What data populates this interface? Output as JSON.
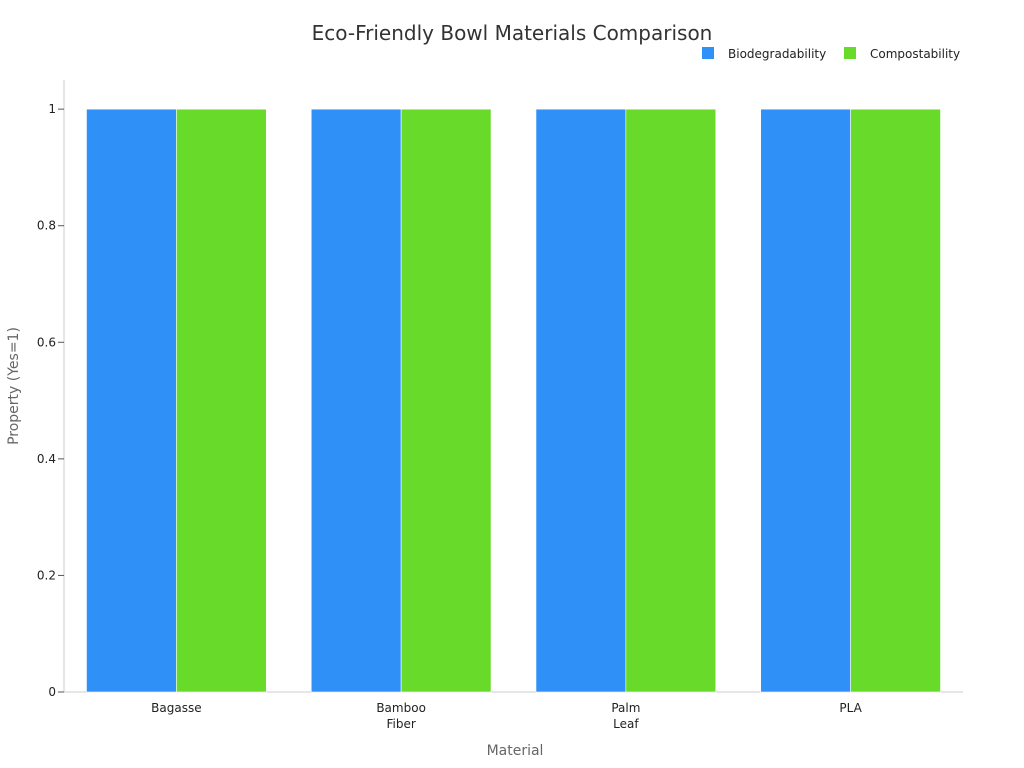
{
  "chart_data": {
    "type": "bar",
    "title": "Eco-Friendly Bowl Materials Comparison",
    "xlabel": "Material",
    "ylabel": "Property (Yes=1)",
    "categories": [
      [
        "Bagasse"
      ],
      [
        "Bamboo",
        "Fiber"
      ],
      [
        "Palm",
        "Leaf"
      ],
      [
        "PLA"
      ]
    ],
    "series": [
      {
        "name": "Biodegradability",
        "color": "#2f90f8",
        "values": [
          1,
          1,
          1,
          1
        ]
      },
      {
        "name": "Compostability",
        "color": "#67da2a",
        "values": [
          1,
          1,
          1,
          1
        ]
      }
    ],
    "ylim": [
      0,
      1.05
    ],
    "yticks": [
      "0",
      "0.2",
      "0.4",
      "0.6",
      "0.8",
      "1"
    ],
    "ytick_values": [
      0,
      0.2,
      0.4,
      0.6,
      0.8,
      1
    ],
    "grid": false,
    "legend_position": "top-right"
  }
}
